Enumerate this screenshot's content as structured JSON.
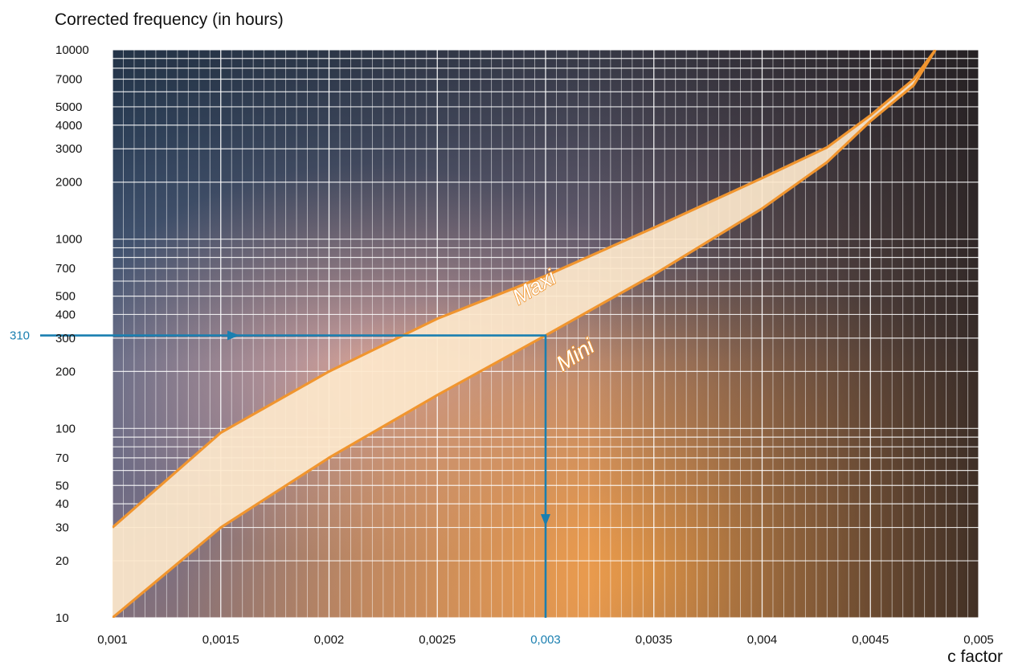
{
  "chart_data": {
    "type": "area",
    "title": "Corrected frequency (in hours)",
    "xlabel": "c factor",
    "ylabel": "",
    "x_scale": "linear",
    "y_scale": "log",
    "xlim": [
      0.001,
      0.005
    ],
    "ylim": [
      10,
      10000
    ],
    "x_ticks": [
      0.001,
      0.0015,
      0.002,
      0.0025,
      0.003,
      0.0035,
      0.004,
      0.0045,
      0.005
    ],
    "x_tick_labels": [
      "0,001",
      "0,0015",
      "0,002",
      "0,0025",
      "0,003",
      "0,0035",
      "0,004",
      "0,0045",
      "0,005"
    ],
    "y_ticks": [
      10,
      20,
      30,
      40,
      50,
      70,
      100,
      200,
      300,
      400,
      500,
      700,
      1000,
      2000,
      3000,
      4000,
      5000,
      7000,
      10000
    ],
    "y_tick_labels": [
      "10",
      "20",
      "30",
      "40",
      "50",
      "70",
      "100",
      "200",
      "300",
      "400",
      "500",
      "700",
      "1000",
      "2000",
      "3000",
      "4000",
      "5000",
      "7000",
      "10000"
    ],
    "grid": true,
    "series": [
      {
        "name": "Maxi",
        "x": [
          0.001,
          0.0015,
          0.002,
          0.0025,
          0.003,
          0.0035,
          0.004,
          0.0043,
          0.0045,
          0.0047,
          0.0048
        ],
        "y": [
          30,
          95,
          200,
          380,
          640,
          1150,
          2100,
          3050,
          4500,
          7000,
          10000
        ]
      },
      {
        "name": "Mini",
        "x": [
          0.001,
          0.0015,
          0.002,
          0.0025,
          0.003,
          0.0035,
          0.004,
          0.0043,
          0.0045,
          0.0047,
          0.0048
        ],
        "y": [
          10,
          30,
          70,
          150,
          310,
          650,
          1450,
          2550,
          4200,
          6500,
          10000
        ]
      }
    ],
    "annotation": {
      "y_value": 310,
      "y_label": "310",
      "x_value": 0.003,
      "x_label": "0,003",
      "color": "#1a7fb0"
    },
    "colors": {
      "band_fill": "#fde8cc",
      "band_stroke": "#f0952f",
      "grid": "#ffffff",
      "background_top_left": "#2c5a88",
      "background_bottom_right": "#e8903c",
      "background_dark": "#2a2020"
    }
  }
}
